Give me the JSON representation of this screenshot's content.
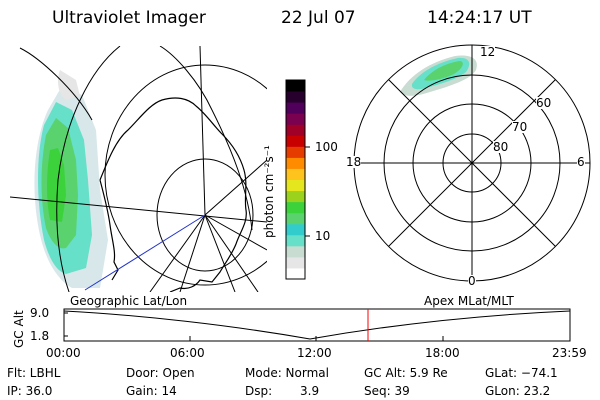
{
  "header": {
    "instrument": "Ultraviolet Imager",
    "date": "22 Jul 07",
    "time": "14:24:17 UT"
  },
  "colorbar": {
    "label": "photon cm⁻²s⁻¹",
    "tick_100": "100",
    "tick_10": "10",
    "colors": [
      "#ffffff",
      "#e6e6e6",
      "#c8dcd2",
      "#66e0c8",
      "#33cccc",
      "#5ad26e",
      "#3cd23c",
      "#9ad21e",
      "#e6e61e",
      "#ffc31e",
      "#ff8c00",
      "#e63c00",
      "#c80000",
      "#a00028",
      "#7a0050",
      "#50005a",
      "#28002d",
      "#000000"
    ]
  },
  "map_panel": {
    "label": "Geographic Lat/Lon"
  },
  "polar_panel": {
    "label": "Apex MLat/MLT",
    "mlt_labels": {
      "top": "12",
      "bottom": "0",
      "left": "18",
      "right": "6"
    },
    "lat_labels": [
      "60",
      "70",
      "80"
    ]
  },
  "timeline": {
    "ylabel": "GC Alt",
    "ytick_top": "9.0",
    "ytick_bottom": "1.8",
    "x_ticks": [
      "00:00",
      "06:00",
      "12:00",
      "18:00",
      "23:59"
    ],
    "current_time_marker": "14:24",
    "marker_color": "#ff0000"
  },
  "info": {
    "flt": "Flt: LBHL",
    "ip": "IP: 36.0",
    "door": "Door: Open",
    "gain": "Gain: 14",
    "mode": "Mode: Normal",
    "dsp_label": "Dsp:",
    "dsp_value": "3.9",
    "gcalt": "GC Alt: 5.9 Re",
    "seq": "Seq: 39",
    "glat": "GLat: −74.1",
    "glon": "GLon:  23.2"
  }
}
